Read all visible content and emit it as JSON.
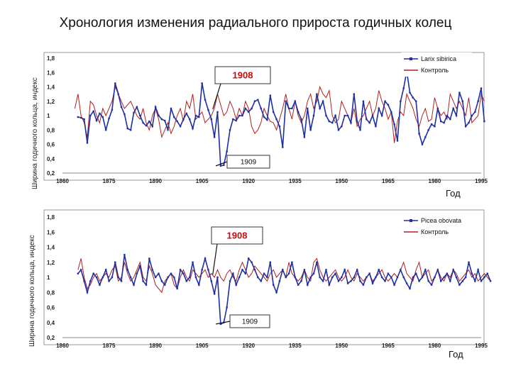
{
  "title": "Хронология изменения радиального прироста годичных колец",
  "colors": {
    "study": "#1f2fa0",
    "control": "#b02020",
    "box_red": "#c01010"
  },
  "chart_data": [
    {
      "type": "line",
      "title": "",
      "ylabel": "Ширина годичного кольца, индекс",
      "xlabel": "Год",
      "xlim": [
        1860,
        1995
      ],
      "ylim": [
        0.2,
        1.8
      ],
      "xticks": [
        "1860",
        "1875",
        "1890",
        "1905",
        "1920",
        "1935",
        "1950",
        "1965",
        "1980",
        "1995"
      ],
      "yticks": [
        "0,2",
        "0,4",
        "0,6",
        "0,8",
        "1",
        "1,2",
        "1,4",
        "1,6",
        "1,8"
      ],
      "legend": {
        "position": "top-right"
      },
      "annotations": [
        {
          "label": "1908",
          "year": 1908,
          "value": 1.05
        },
        {
          "label": "1909",
          "year": 1909,
          "value": 0.3
        }
      ],
      "series": [
        {
          "name": "Larix sibirica",
          "x_start": 1865,
          "values": [
            0.98,
            0.97,
            0.95,
            0.62,
            1.0,
            1.06,
            0.93,
            1.03,
            0.98,
            0.8,
            0.96,
            1.08,
            1.45,
            1.3,
            1.12,
            1.02,
            0.82,
            0.8,
            1.04,
            1.12,
            1.0,
            0.9,
            0.86,
            0.92,
            0.85,
            1.12,
            1.0,
            0.95,
            0.93,
            0.8,
            1.1,
            0.98,
            0.92,
            0.85,
            0.95,
            1.03,
            0.95,
            0.82,
            1.0,
            0.98,
            1.45,
            1.22,
            1.08,
            0.95,
            0.7,
            1.05,
            0.3,
            0.31,
            0.5,
            0.8,
            0.95,
            0.93,
            1.0,
            1.0,
            1.1,
            1.05,
            1.1,
            1.2,
            1.22,
            1.1,
            0.98,
            0.94,
            1.28,
            1.05,
            0.95,
            0.85,
            0.56,
            1.2,
            1.1,
            1.1,
            1.2,
            1.05,
            0.95,
            0.7,
            1.1,
            0.8,
            1.0,
            1.3,
            1.1,
            1.2,
            1.0,
            0.92,
            0.9,
            1.0,
            0.8,
            0.85,
            1.0,
            1.0,
            0.9,
            1.3,
            0.92,
            0.8,
            1.2,
            0.95,
            0.9,
            1.0,
            0.85,
            1.1,
            1.0,
            1.2,
            1.15,
            1.05,
            0.88,
            0.65,
            1.2,
            1.38,
            1.62,
            1.32,
            1.25,
            1.2,
            0.75,
            0.6,
            0.7,
            0.8,
            0.88,
            0.85,
            1.1,
            0.92,
            0.9,
            1.0,
            0.95,
            1.1,
            1.0,
            1.32,
            1.2,
            0.85,
            0.9,
            1.0,
            1.05,
            1.2,
            1.38,
            0.92
          ]
        },
        {
          "name": "Контроль",
          "x_start": 1864,
          "values": [
            1.1,
            1.3,
            1.0,
            0.9,
            0.7,
            1.2,
            1.15,
            1.0,
            0.9,
            1.1,
            1.0,
            1.1,
            1.2,
            1.4,
            1.3,
            1.2,
            1.1,
            1.15,
            1.2,
            1.1,
            1.0,
            0.95,
            1.1,
            0.9,
            0.8,
            1.0,
            1.1,
            0.95,
            0.7,
            0.8,
            0.9,
            0.75,
            0.85,
            1.0,
            1.1,
            0.92,
            1.2,
            1.1,
            1.3,
            0.95,
            1.0,
            1.05,
            0.9,
            0.95,
            1.0,
            1.1,
            1.3,
            1.15,
            1.0,
            1.05,
            1.2,
            1.1,
            0.95,
            1.1,
            1.0,
            1.2,
            1.1,
            0.85,
            0.75,
            0.8,
            0.9,
            1.1,
            1.0,
            0.92,
            0.9,
            0.8,
            0.95,
            1.1,
            1.3,
            1.1,
            0.95,
            1.2,
            1.0,
            0.9,
            1.0,
            1.2,
            1.3,
            1.1,
            1.2,
            1.4,
            1.3,
            1.25,
            1.35,
            1.0,
            0.9,
            0.95,
            1.2,
            1.1,
            1.0,
            0.9,
            1.1,
            0.85,
            0.95,
            1.0,
            1.1,
            1.2,
            1.0,
            1.1,
            1.35,
            1.2,
            1.1,
            0.95,
            1.05,
            0.62,
            0.92,
            1.05,
            1.0,
            1.3,
            1.2,
            1.1,
            0.95,
            0.85,
            1.0,
            1.1,
            0.92,
            0.95,
            1.25,
            1.1,
            1.0,
            1.05,
            0.95,
            1.3,
            1.2,
            1.1,
            1.2,
            1.1,
            1.0,
            1.25,
            0.9,
            0.95,
            1.0,
            1.3,
            1.2
          ]
        }
      ]
    },
    {
      "type": "line",
      "title": "",
      "ylabel": "Ширина годичного кольца, индекс",
      "xlabel": "Год",
      "xlim": [
        1860,
        1995
      ],
      "ylim": [
        0.2,
        1.8
      ],
      "xticks": [
        "1860",
        "1875",
        "1890",
        "1905",
        "1920",
        "1935",
        "1950",
        "1965",
        "1980",
        "1995"
      ],
      "yticks": [
        "0,2",
        "0,4",
        "0,6",
        "0,8",
        "1",
        "1,2",
        "1,4",
        "1,6",
        "1,8"
      ],
      "legend": {
        "position": "top-right"
      },
      "annotations": [
        {
          "label": "1908",
          "year": 1908,
          "value": 1.0
        },
        {
          "label": "1909",
          "year": 1909,
          "value": 0.38
        }
      ],
      "series": [
        {
          "name": "Picea obovata",
          "x_start": 1865,
          "values": [
            1.05,
            1.1,
            0.95,
            0.8,
            0.95,
            1.05,
            1.0,
            0.9,
            1.0,
            1.1,
            0.95,
            1.0,
            1.2,
            1.0,
            0.95,
            1.3,
            1.1,
            1.0,
            0.9,
            1.05,
            1.15,
            0.95,
            0.9,
            1.25,
            1.1,
            1.0,
            1.05,
            0.95,
            0.9,
            1.0,
            1.05,
            1.0,
            0.85,
            1.1,
            1.05,
            0.95,
            1.0,
            1.2,
            1.0,
            0.9,
            1.1,
            1.25,
            1.1,
            0.95,
            0.78,
            1.0,
            0.38,
            0.4,
            0.6,
            0.95,
            1.05,
            0.9,
            1.0,
            1.1,
            1.05,
            1.25,
            1.2,
            1.1,
            1.0,
            0.95,
            1.05,
            1.0,
            1.2,
            0.9,
            0.8,
            0.95,
            1.1,
            1.0,
            1.05,
            1.2,
            1.0,
            0.9,
            0.95,
            1.1,
            0.9,
            1.0,
            1.05,
            1.2,
            1.0,
            0.95,
            1.1,
            0.9,
            1.0,
            1.05,
            0.95,
            1.0,
            1.1,
            0.92,
            0.95,
            1.0,
            1.1,
            0.95,
            0.9,
            1.0,
            1.05,
            0.92,
            1.0,
            1.1,
            1.0,
            0.95,
            1.05,
            1.0,
            0.9,
            1.0,
            1.1,
            1.0,
            0.92,
            0.85,
            1.0,
            1.05,
            0.95,
            1.0,
            1.1,
            0.95,
            0.9,
            1.0,
            1.1,
            0.95,
            1.0,
            1.05,
            0.95,
            1.1,
            1.0,
            0.9,
            0.95,
            1.0,
            1.2,
            1.05,
            0.95,
            1.1,
            0.95,
            1.0,
            1.05,
            0.95
          ]
        },
        {
          "name": "Контроль",
          "x_start": 1865,
          "values": [
            1.1,
            1.25,
            1.0,
            0.85,
            0.9,
            1.0,
            1.05,
            0.95,
            1.0,
            1.05,
            1.0,
            1.1,
            1.15,
            0.95,
            1.0,
            1.2,
            1.05,
            0.95,
            1.0,
            1.1,
            1.2,
            1.0,
            0.95,
            1.15,
            1.05,
            0.9,
            0.85,
            0.8,
            0.95,
            1.0,
            1.05,
            0.9,
            0.85,
            1.0,
            1.1,
            1.0,
            0.95,
            1.1,
            1.05,
            1.0,
            1.05,
            1.1,
            1.0,
            1.05,
            1.0,
            1.1,
            1.0,
            0.95,
            1.05,
            1.1,
            1.0,
            0.95,
            1.1,
            1.2,
            1.1,
            1.0,
            1.05,
            1.15,
            1.1,
            1.05,
            1.0,
            0.95,
            1.05,
            1.1,
            1.0,
            1.05,
            1.1,
            1.0,
            1.2,
            1.05,
            1.0,
            0.95,
            1.0,
            1.1,
            1.0,
            0.95,
            1.2,
            1.25,
            1.1,
            1.0,
            0.95,
            1.0,
            1.05,
            1.1,
            1.0,
            0.95,
            1.0,
            1.1,
            1.0,
            0.95,
            1.05,
            1.0,
            0.95,
            1.0,
            1.05,
            0.95,
            1.0,
            1.05,
            1.1,
            1.0,
            0.95,
            1.0,
            1.05,
            1.0,
            1.1,
            1.2,
            1.05,
            1.0,
            0.95,
            1.1,
            1.2,
            1.0,
            1.05,
            1.1,
            0.95,
            1.0,
            1.1,
            1.0,
            0.95,
            1.05,
            1.0,
            1.1,
            1.05,
            0.95,
            1.0,
            1.05,
            1.1,
            1.0,
            1.05,
            0.95,
            1.0,
            1.05,
            1.0,
            0.95
          ]
        }
      ]
    }
  ]
}
